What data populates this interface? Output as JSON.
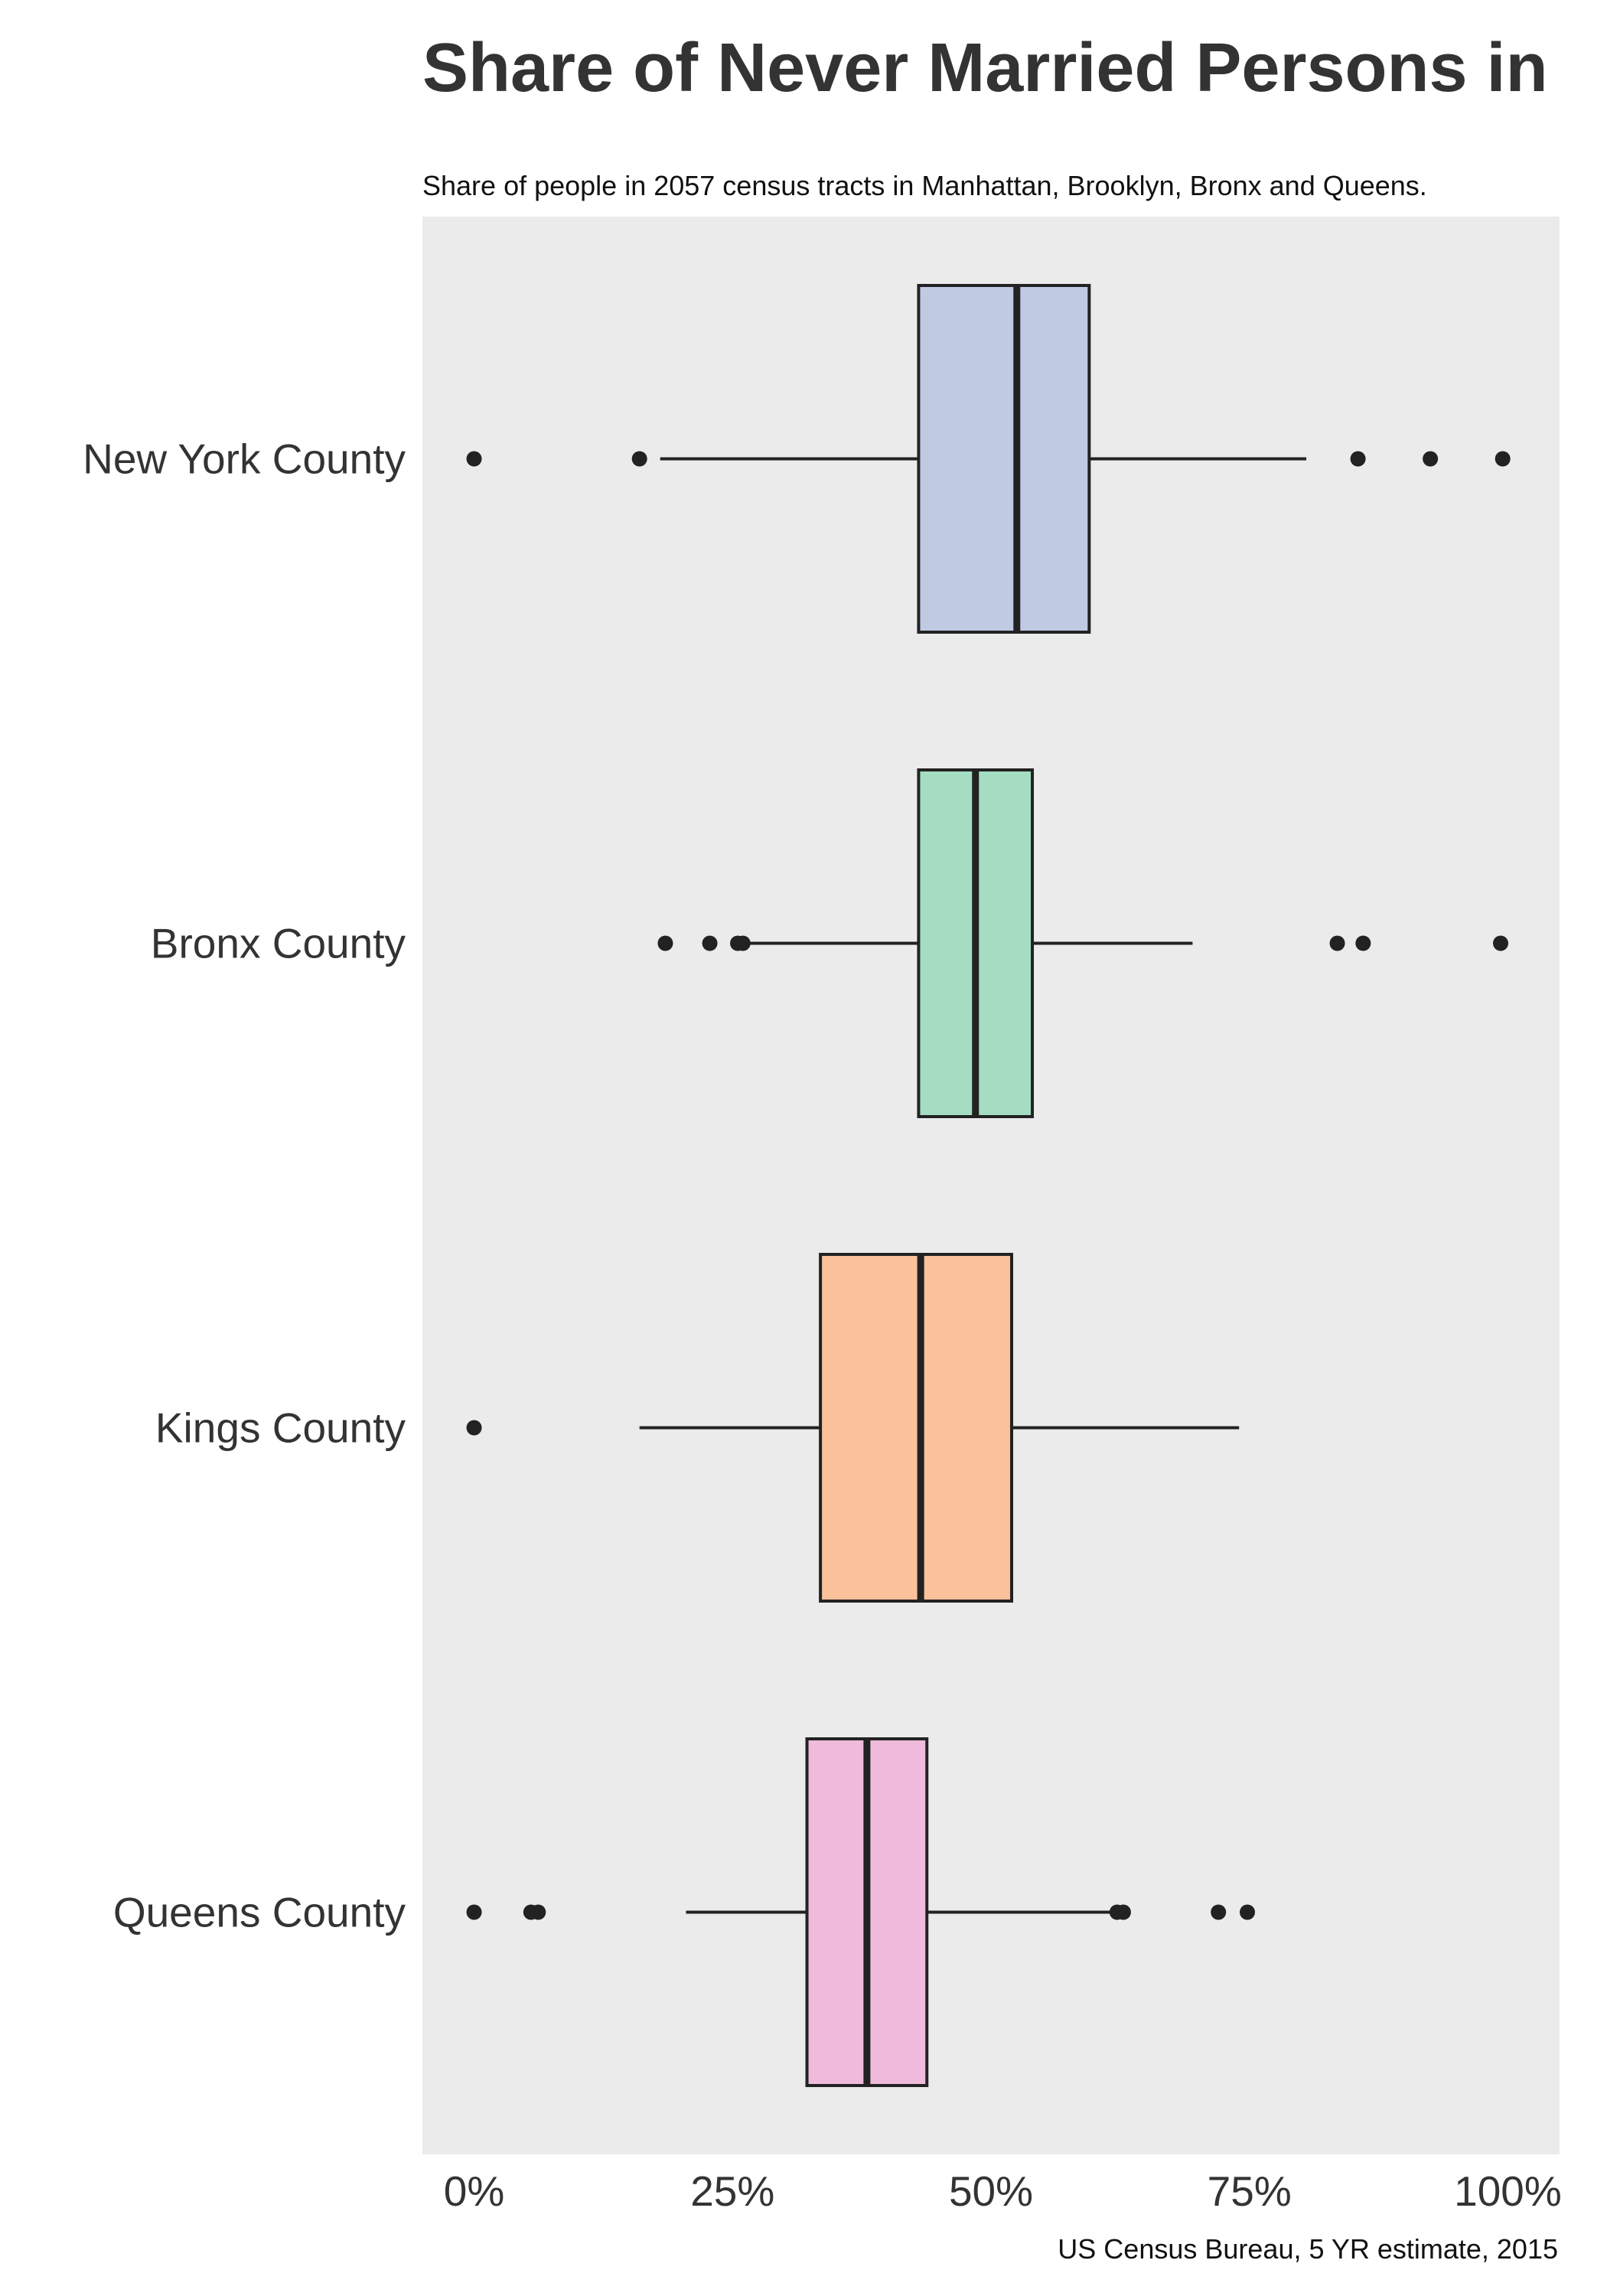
{
  "chart_data": {
    "type": "boxplot",
    "orientation": "horizontal",
    "title": "Share of Never Married Persons in",
    "subtitle": "Share of people in 2057 census tracts in Manhattan, Brooklyn, Bronx and Queens.",
    "source": "US Census Bureau, 5 YR estimate, 2015",
    "xlim": [
      -0.05,
      1.05
    ],
    "xticks": [
      0,
      0.25,
      0.5,
      0.75,
      1.0
    ],
    "xtick_labels": [
      "0%",
      "25%",
      "50%",
      "75%",
      "100%"
    ],
    "grid": false,
    "background": "#ebebeb",
    "categories": [
      "New York County",
      "Bronx County",
      "Kings County",
      "Queens County"
    ],
    "boxes": [
      {
        "name": "New York County",
        "color": "#c0cae2",
        "whisker_low": 0.18,
        "q1": 0.43,
        "median": 0.525,
        "q3": 0.595,
        "whisker_high": 0.805,
        "outliers": [
          0.0,
          0.16,
          0.855,
          0.925,
          0.995
        ]
      },
      {
        "name": "Bronx County",
        "color": "#a4ddc2",
        "whisker_low": 0.265,
        "q1": 0.43,
        "median": 0.485,
        "q3": 0.54,
        "whisker_high": 0.695,
        "outliers": [
          0.185,
          0.228,
          0.255,
          0.26,
          0.835,
          0.86,
          0.993
        ]
      },
      {
        "name": "Kings County",
        "color": "#fac19b",
        "whisker_low": 0.16,
        "q1": 0.335,
        "median": 0.432,
        "q3": 0.52,
        "whisker_high": 0.74,
        "outliers": [
          0.0
        ]
      },
      {
        "name": "Queens County",
        "color": "#efbadb",
        "whisker_low": 0.205,
        "q1": 0.322,
        "median": 0.38,
        "q3": 0.438,
        "whisker_high": 0.62,
        "outliers": [
          0.0,
          0.055,
          0.062,
          0.622,
          0.628,
          0.72,
          0.748
        ]
      }
    ]
  }
}
